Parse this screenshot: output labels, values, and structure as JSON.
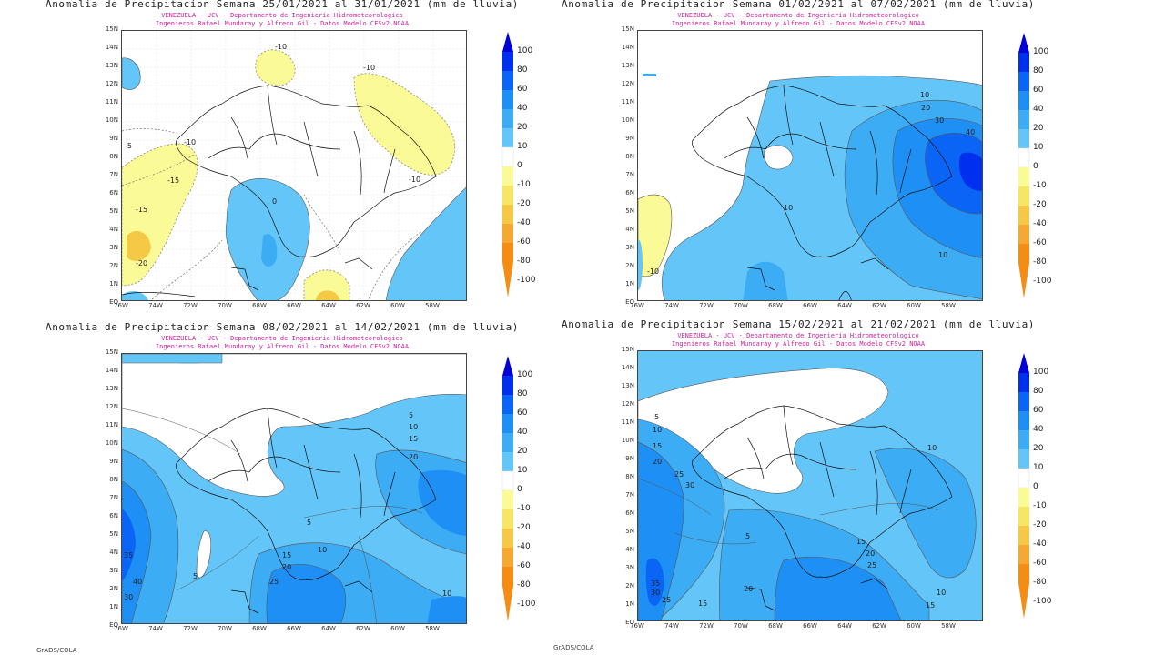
{
  "panels": [
    {
      "title": "Anomalia de Precipitacion Semana 25/01/2021 al 31/01/2021 (mm de lluvia)",
      "subtitle1": "VENEZUELA - UCV - Departamento de Ingenieria Hidrometeorologico",
      "subtitle2": "Ingenieros Rafael Mundaray y Alfredo Gil - Datos Modelo CFSv2 NOAA",
      "contour_labels": [
        "-10",
        "-10",
        "-5",
        "-10",
        "-15",
        "-15",
        "-20",
        "-10",
        "0"
      ]
    },
    {
      "title": "Anomalia de Precipitacion Semana 01/02/2021 al 07/02/2021 (mm de lluvia)",
      "subtitle1": "VENEZUELA - UCV - Departamento de Ingenieria Hidrometeorologico",
      "subtitle2": "Ingenieros Rafael Mundaray y Alfredo Gil - Datos Modelo CFSv2 NOAA",
      "contour_labels": [
        "10",
        "20",
        "30",
        "40",
        "10",
        "10",
        "-10"
      ]
    },
    {
      "title": "Anomalia de Precipitacion Semana 08/02/2021 al 14/02/2021 (mm de lluvia)",
      "subtitle1": "VENEZUELA - UCV - Departamento de Ingenieria Hidrometeorologico",
      "subtitle2": "Ingenieros Rafael Mundaray y Alfredo Gil - Datos Modelo CFSv2 NOAA",
      "contour_labels": [
        "5",
        "10",
        "15",
        "20",
        "5",
        "10",
        "15",
        "20",
        "25",
        "5",
        "10",
        "35",
        "40",
        "30"
      ]
    },
    {
      "title": "Anomalia de Precipitacion Semana 15/02/2021 al 21/02/2021 (mm de lluvia)",
      "subtitle1": "VENEZUELA - UCV - Departamento de Ingenieria Hidrometeorologico",
      "subtitle2": "Ingenieros Rafael Mundaray y Alfredo Gil - Datos Modelo CFSv2 NOAA",
      "contour_labels": [
        "5",
        "10",
        "15",
        "20",
        "25",
        "30",
        "10",
        "5",
        "15",
        "20",
        "25",
        "35",
        "30",
        "25",
        "20",
        "15",
        "10",
        "15"
      ]
    }
  ],
  "lat_labels": [
    "15N",
    "14N",
    "13N",
    "12N",
    "11N",
    "10N",
    "9N",
    "8N",
    "7N",
    "6N",
    "5N",
    "4N",
    "3N",
    "2N",
    "1N",
    "EQ"
  ],
  "lon_labels": [
    "76W",
    "74W",
    "72W",
    "70W",
    "68W",
    "66W",
    "64W",
    "62W",
    "60W",
    "58W"
  ],
  "colorbar": {
    "ticks": [
      "100",
      "80",
      "60",
      "40",
      "20",
      "10",
      "0",
      "-10",
      "-20",
      "-40",
      "-60",
      "-80",
      "-100"
    ],
    "colors": [
      "#0000d8",
      "#0030ee",
      "#0a64f5",
      "#1e90f5",
      "#3cacf5",
      "#64c6f8",
      "#ffffff",
      "#fafa96",
      "#f5e664",
      "#f5c846",
      "#f5a832",
      "#f58c14"
    ]
  },
  "footer": "GrADS/COLA"
}
